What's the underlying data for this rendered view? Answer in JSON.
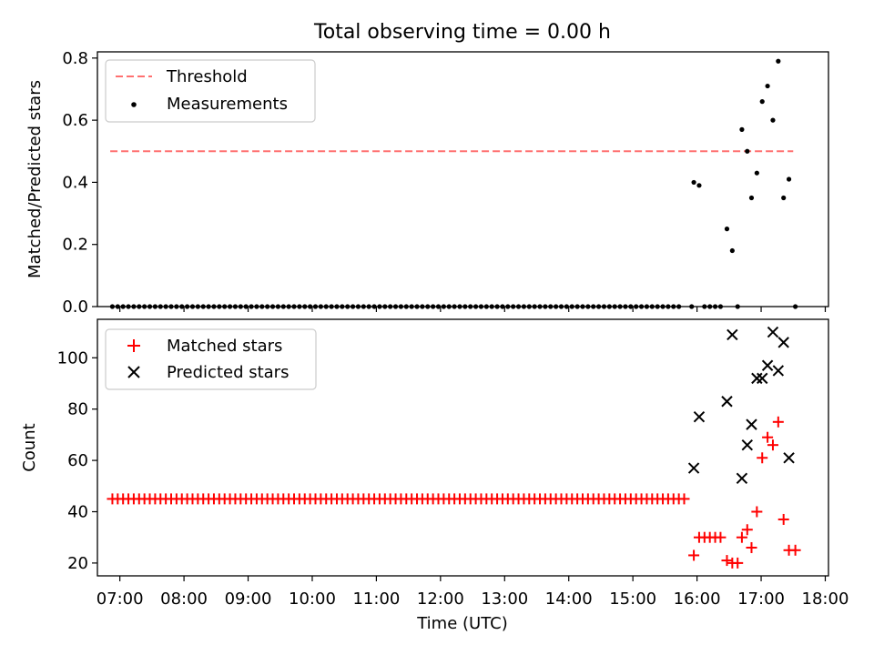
{
  "figure": {
    "title": "Total observing time = 0.00 h",
    "xlabel": "Time (UTC)"
  },
  "chart_data": [
    {
      "type": "scatter",
      "ylabel": "Matched/Predicted stars",
      "xlim": [
        "06:39",
        "18:03"
      ],
      "ylim": [
        0,
        0.82
      ],
      "yticks": [
        0.0,
        0.2,
        0.4,
        0.6,
        0.8
      ],
      "yticklabels": [
        "0.0",
        "0.2",
        "0.4",
        "0.6",
        "0.8"
      ],
      "grid": false,
      "legend_position": "upper left",
      "threshold": {
        "name": "Threshold",
        "color": "#ff7070",
        "style": "dashed",
        "y": 0.5,
        "x": [
          "06:51",
          "17:30"
        ]
      },
      "series": [
        {
          "name": "Measurements",
          "color": "#000000",
          "marker": "dot",
          "points": [
            [
              "15:57",
              0.4
            ],
            [
              "16:02",
              0.39
            ],
            [
              "16:28",
              0.25
            ],
            [
              "16:33",
              0.18
            ],
            [
              "16:42",
              0.57
            ],
            [
              "16:47",
              0.5
            ],
            [
              "16:51",
              0.35
            ],
            [
              "16:56",
              0.43
            ],
            [
              "17:01",
              0.66
            ],
            [
              "17:06",
              0.71
            ],
            [
              "17:11",
              0.6
            ],
            [
              "17:16",
              0.79
            ],
            [
              "17:21",
              0.35
            ],
            [
              "17:26",
              0.41
            ],
            [
              "17:32",
              0.0
            ],
            [
              "15:55",
              0.0
            ],
            [
              "16:07",
              0.0
            ],
            [
              "16:12",
              0.0
            ],
            [
              "16:17",
              0.0
            ],
            [
              "16:22",
              0.0
            ],
            [
              "16:38",
              0.0
            ]
          ],
          "zero_run": {
            "start": "06:53",
            "end": "15:47",
            "step_minutes": 5,
            "y": 0.0
          }
        }
      ]
    },
    {
      "type": "scatter",
      "ylabel": "Count",
      "xlim": [
        "06:39",
        "18:03"
      ],
      "ylim": [
        15,
        115
      ],
      "yticks": [
        20,
        40,
        60,
        80,
        100
      ],
      "yticklabels": [
        "20",
        "40",
        "60",
        "80",
        "100"
      ],
      "xticks": [
        "07:00",
        "08:00",
        "09:00",
        "10:00",
        "11:00",
        "12:00",
        "13:00",
        "14:00",
        "15:00",
        "16:00",
        "17:00",
        "18:00"
      ],
      "grid": false,
      "legend_position": "upper left",
      "series": [
        {
          "name": "Matched stars",
          "color": "#ff0000",
          "marker": "plus",
          "points": [
            [
              "15:57",
              23
            ],
            [
              "16:02",
              30
            ],
            [
              "16:07",
              30
            ],
            [
              "16:12",
              30
            ],
            [
              "16:17",
              30
            ],
            [
              "16:22",
              30
            ],
            [
              "16:28",
              21
            ],
            [
              "16:33",
              20
            ],
            [
              "16:38",
              20
            ],
            [
              "16:42",
              30
            ],
            [
              "16:47",
              33
            ],
            [
              "16:51",
              26
            ],
            [
              "16:56",
              40
            ],
            [
              "17:01",
              61
            ],
            [
              "17:06",
              69
            ],
            [
              "17:11",
              66
            ],
            [
              "17:16",
              75
            ],
            [
              "17:21",
              37
            ],
            [
              "17:26",
              25
            ],
            [
              "17:32",
              25
            ]
          ],
          "constant_run": {
            "start": "06:53",
            "end": "15:52",
            "step_minutes": 5,
            "y": 45
          }
        },
        {
          "name": "Predicted stars",
          "color": "#000000",
          "marker": "x",
          "points": [
            [
              "15:57",
              57
            ],
            [
              "16:02",
              77
            ],
            [
              "16:28",
              83
            ],
            [
              "16:33",
              109
            ],
            [
              "16:42",
              53
            ],
            [
              "16:47",
              66
            ],
            [
              "16:51",
              74
            ],
            [
              "16:56",
              92
            ],
            [
              "17:01",
              92
            ],
            [
              "17:06",
              97
            ],
            [
              "17:11",
              110
            ],
            [
              "17:16",
              95
            ],
            [
              "17:21",
              106
            ],
            [
              "17:26",
              61
            ]
          ]
        }
      ]
    }
  ]
}
